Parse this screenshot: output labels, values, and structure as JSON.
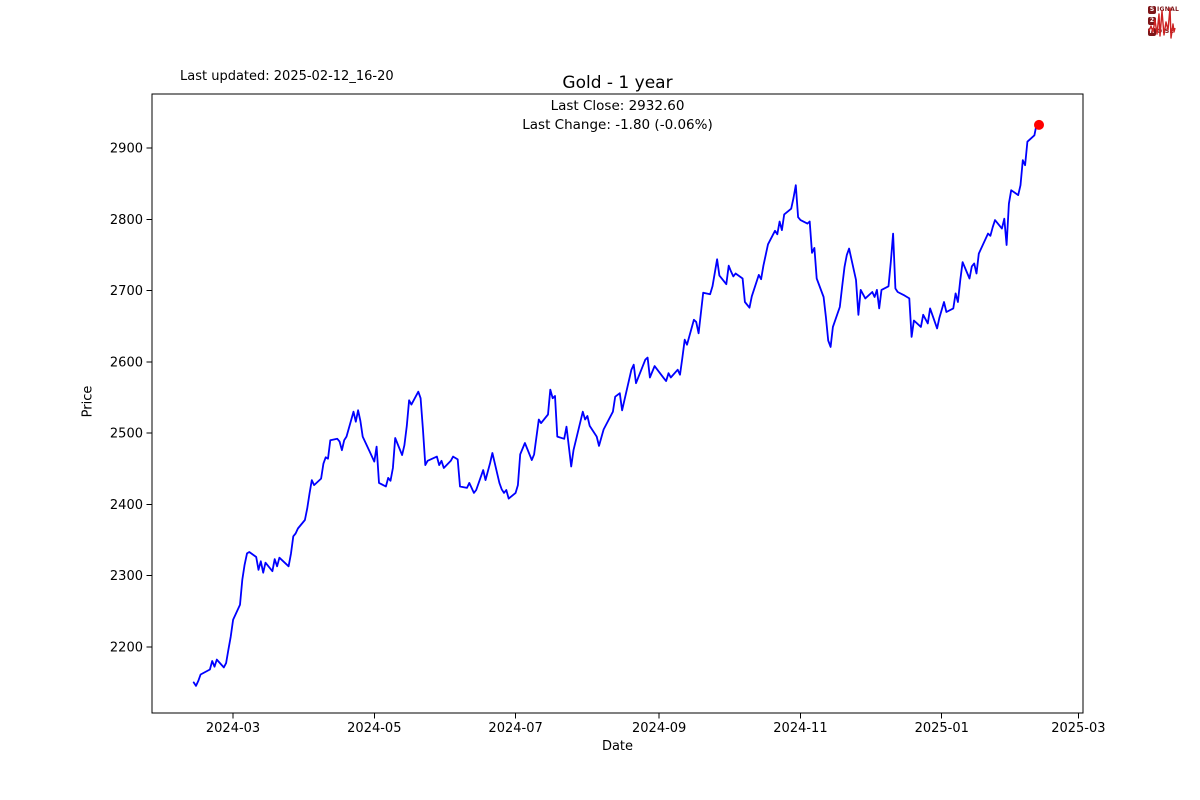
{
  "header": {
    "last_updated": "Last updated: 2025-02-12_16-20"
  },
  "logo": {
    "waveform_color": "#cc2222",
    "box_color": "#7d1518",
    "signal_boxed": "S",
    "signal_rest": "IGNAL",
    "two_boxed": "2",
    "noise_boxed": "N",
    "noise_rest": "OISE"
  },
  "chart_data": {
    "type": "line",
    "title": "Gold - 1 year",
    "subtitle_lines": [
      "Last Close: 2932.60",
      "Last Change: -1.80 (-0.06%)"
    ],
    "last_close": 2932.6,
    "last_change": -1.8,
    "last_change_pct": -0.06,
    "xlabel": "Date",
    "ylabel": "Price",
    "x_ticks": [
      "2024-03",
      "2024-05",
      "2024-07",
      "2024-09",
      "2024-11",
      "2025-01",
      "2025-03"
    ],
    "y_ticks": [
      2200,
      2300,
      2400,
      2500,
      2600,
      2700,
      2800,
      2900
    ],
    "xlim": [
      "2024-01-26",
      "2025-03-03"
    ],
    "ylim": [
      2107,
      2976
    ],
    "grid": false,
    "legend": "none",
    "line_color": "#0000ff",
    "marker_color": "#ff0000",
    "series_name": "Gold",
    "points": [
      [
        "2024-02-13",
        2150
      ],
      [
        "2024-02-14",
        2145
      ],
      [
        "2024-02-15",
        2152
      ],
      [
        "2024-02-16",
        2161
      ],
      [
        "2024-02-20",
        2168
      ],
      [
        "2024-02-21",
        2180
      ],
      [
        "2024-02-22",
        2172
      ],
      [
        "2024-02-23",
        2182
      ],
      [
        "2024-02-26",
        2171
      ],
      [
        "2024-02-27",
        2177
      ],
      [
        "2024-02-28",
        2196
      ],
      [
        "2024-02-29",
        2214
      ],
      [
        "2024-03-01",
        2238
      ],
      [
        "2024-03-04",
        2259
      ],
      [
        "2024-03-05",
        2294
      ],
      [
        "2024-03-06",
        2315
      ],
      [
        "2024-03-07",
        2331
      ],
      [
        "2024-03-08",
        2333
      ],
      [
        "2024-03-11",
        2326
      ],
      [
        "2024-03-12",
        2308
      ],
      [
        "2024-03-13",
        2320
      ],
      [
        "2024-03-14",
        2304
      ],
      [
        "2024-03-15",
        2318
      ],
      [
        "2024-03-18",
        2306
      ],
      [
        "2024-03-19",
        2323
      ],
      [
        "2024-03-20",
        2313
      ],
      [
        "2024-03-21",
        2325
      ],
      [
        "2024-03-25",
        2313
      ],
      [
        "2024-03-26",
        2331
      ],
      [
        "2024-03-27",
        2355
      ],
      [
        "2024-03-28",
        2359
      ],
      [
        "2024-03-29",
        2366
      ],
      [
        "2024-04-01",
        2378
      ],
      [
        "2024-04-02",
        2394
      ],
      [
        "2024-04-03",
        2415
      ],
      [
        "2024-04-04",
        2434
      ],
      [
        "2024-04-05",
        2427
      ],
      [
        "2024-04-08",
        2436
      ],
      [
        "2024-04-09",
        2457
      ],
      [
        "2024-04-10",
        2466
      ],
      [
        "2024-04-11",
        2464
      ],
      [
        "2024-04-12",
        2490
      ],
      [
        "2024-04-15",
        2492
      ],
      [
        "2024-04-16",
        2488
      ],
      [
        "2024-04-17",
        2476
      ],
      [
        "2024-04-18",
        2490
      ],
      [
        "2024-04-19",
        2495
      ],
      [
        "2024-04-22",
        2530
      ],
      [
        "2024-04-23",
        2516
      ],
      [
        "2024-04-24",
        2532
      ],
      [
        "2024-04-25",
        2517
      ],
      [
        "2024-04-26",
        2495
      ],
      [
        "2024-04-29",
        2474
      ],
      [
        "2024-04-30",
        2467
      ],
      [
        "2024-05-01",
        2460
      ],
      [
        "2024-05-02",
        2481
      ],
      [
        "2024-05-03",
        2430
      ],
      [
        "2024-05-06",
        2425
      ],
      [
        "2024-05-07",
        2437
      ],
      [
        "2024-05-08",
        2433
      ],
      [
        "2024-05-09",
        2451
      ],
      [
        "2024-05-10",
        2493
      ],
      [
        "2024-05-13",
        2469
      ],
      [
        "2024-05-14",
        2483
      ],
      [
        "2024-05-15",
        2510
      ],
      [
        "2024-05-16",
        2546
      ],
      [
        "2024-05-17",
        2540
      ],
      [
        "2024-05-20",
        2558
      ],
      [
        "2024-05-21",
        2549
      ],
      [
        "2024-05-22",
        2504
      ],
      [
        "2024-05-23",
        2455
      ],
      [
        "2024-05-24",
        2461
      ],
      [
        "2024-05-28",
        2467
      ],
      [
        "2024-05-29",
        2455
      ],
      [
        "2024-05-30",
        2461
      ],
      [
        "2024-05-31",
        2451
      ],
      [
        "2024-06-03",
        2461
      ],
      [
        "2024-06-04",
        2467
      ],
      [
        "2024-06-06",
        2463
      ],
      [
        "2024-06-07",
        2425
      ],
      [
        "2024-06-10",
        2423
      ],
      [
        "2024-06-11",
        2430
      ],
      [
        "2024-06-13",
        2416
      ],
      [
        "2024-06-14",
        2420
      ],
      [
        "2024-06-17",
        2448
      ],
      [
        "2024-06-18",
        2434
      ],
      [
        "2024-06-20",
        2458
      ],
      [
        "2024-06-21",
        2472
      ],
      [
        "2024-06-24",
        2430
      ],
      [
        "2024-06-25",
        2421
      ],
      [
        "2024-06-26",
        2416
      ],
      [
        "2024-06-27",
        2420
      ],
      [
        "2024-06-28",
        2408
      ],
      [
        "2024-07-01",
        2416
      ],
      [
        "2024-07-02",
        2427
      ],
      [
        "2024-07-03",
        2470
      ],
      [
        "2024-07-05",
        2486
      ],
      [
        "2024-07-08",
        2462
      ],
      [
        "2024-07-09",
        2470
      ],
      [
        "2024-07-11",
        2519
      ],
      [
        "2024-07-12",
        2514
      ],
      [
        "2024-07-15",
        2526
      ],
      [
        "2024-07-16",
        2561
      ],
      [
        "2024-07-17",
        2549
      ],
      [
        "2024-07-18",
        2552
      ],
      [
        "2024-07-19",
        2495
      ],
      [
        "2024-07-22",
        2492
      ],
      [
        "2024-07-23",
        2509
      ],
      [
        "2024-07-25",
        2453
      ],
      [
        "2024-07-26",
        2476
      ],
      [
        "2024-07-30",
        2530
      ],
      [
        "2024-07-31",
        2519
      ],
      [
        "2024-08-01",
        2524
      ],
      [
        "2024-08-02",
        2510
      ],
      [
        "2024-08-05",
        2495
      ],
      [
        "2024-08-06",
        2482
      ],
      [
        "2024-08-08",
        2505
      ],
      [
        "2024-08-12",
        2530
      ],
      [
        "2024-08-13",
        2551
      ],
      [
        "2024-08-15",
        2556
      ],
      [
        "2024-08-16",
        2532
      ],
      [
        "2024-08-20",
        2589
      ],
      [
        "2024-08-21",
        2596
      ],
      [
        "2024-08-22",
        2570
      ],
      [
        "2024-08-26",
        2603
      ],
      [
        "2024-08-27",
        2606
      ],
      [
        "2024-08-28",
        2578
      ],
      [
        "2024-08-30",
        2594
      ],
      [
        "2024-09-03",
        2577
      ],
      [
        "2024-09-04",
        2573
      ],
      [
        "2024-09-05",
        2584
      ],
      [
        "2024-09-06",
        2578
      ],
      [
        "2024-09-09",
        2589
      ],
      [
        "2024-09-10",
        2582
      ],
      [
        "2024-09-11",
        2605
      ],
      [
        "2024-09-12",
        2631
      ],
      [
        "2024-09-13",
        2624
      ],
      [
        "2024-09-16",
        2659
      ],
      [
        "2024-09-17",
        2656
      ],
      [
        "2024-09-18",
        2640
      ],
      [
        "2024-09-20",
        2697
      ],
      [
        "2024-09-23",
        2695
      ],
      [
        "2024-09-24",
        2706
      ],
      [
        "2024-09-26",
        2744
      ],
      [
        "2024-09-27",
        2721
      ],
      [
        "2024-09-30",
        2709
      ],
      [
        "2024-10-01",
        2735
      ],
      [
        "2024-10-02",
        2727
      ],
      [
        "2024-10-03",
        2720
      ],
      [
        "2024-10-04",
        2724
      ],
      [
        "2024-10-07",
        2717
      ],
      [
        "2024-10-08",
        2684
      ],
      [
        "2024-10-10",
        2676
      ],
      [
        "2024-10-11",
        2692
      ],
      [
        "2024-10-14",
        2722
      ],
      [
        "2024-10-15",
        2716
      ],
      [
        "2024-10-16",
        2735
      ],
      [
        "2024-10-17",
        2750
      ],
      [
        "2024-10-18",
        2765
      ],
      [
        "2024-10-21",
        2784
      ],
      [
        "2024-10-22",
        2779
      ],
      [
        "2024-10-23",
        2797
      ],
      [
        "2024-10-24",
        2785
      ],
      [
        "2024-10-25",
        2807
      ],
      [
        "2024-10-28",
        2815
      ],
      [
        "2024-10-29",
        2830
      ],
      [
        "2024-10-30",
        2848
      ],
      [
        "2024-10-31",
        2803
      ],
      [
        "2024-11-01",
        2799
      ],
      [
        "2024-11-04",
        2794
      ],
      [
        "2024-11-05",
        2797
      ],
      [
        "2024-11-06",
        2753
      ],
      [
        "2024-11-07",
        2760
      ],
      [
        "2024-11-08",
        2717
      ],
      [
        "2024-11-11",
        2691
      ],
      [
        "2024-11-12",
        2663
      ],
      [
        "2024-11-13",
        2630
      ],
      [
        "2024-11-14",
        2621
      ],
      [
        "2024-11-15",
        2649
      ],
      [
        "2024-11-18",
        2677
      ],
      [
        "2024-11-19",
        2705
      ],
      [
        "2024-11-20",
        2733
      ],
      [
        "2024-11-21",
        2750
      ],
      [
        "2024-11-22",
        2759
      ],
      [
        "2024-11-25",
        2715
      ],
      [
        "2024-11-26",
        2666
      ],
      [
        "2024-11-27",
        2701
      ],
      [
        "2024-11-29",
        2689
      ],
      [
        "2024-12-02",
        2698
      ],
      [
        "2024-12-03",
        2691
      ],
      [
        "2024-12-04",
        2701
      ],
      [
        "2024-12-05",
        2675
      ],
      [
        "2024-12-06",
        2701
      ],
      [
        "2024-12-09",
        2706
      ],
      [
        "2024-12-10",
        2740
      ],
      [
        "2024-12-11",
        2780
      ],
      [
        "2024-12-12",
        2703
      ],
      [
        "2024-12-13",
        2698
      ],
      [
        "2024-12-16",
        2693
      ],
      [
        "2024-12-17",
        2691
      ],
      [
        "2024-12-18",
        2689
      ],
      [
        "2024-12-19",
        2635
      ],
      [
        "2024-12-20",
        2658
      ],
      [
        "2024-12-23",
        2649
      ],
      [
        "2024-12-24",
        2666
      ],
      [
        "2024-12-26",
        2654
      ],
      [
        "2024-12-27",
        2675
      ],
      [
        "2024-12-30",
        2647
      ],
      [
        "2024-12-31",
        2662
      ],
      [
        "2025-01-02",
        2684
      ],
      [
        "2025-01-03",
        2670
      ],
      [
        "2025-01-06",
        2675
      ],
      [
        "2025-01-07",
        2696
      ],
      [
        "2025-01-08",
        2684
      ],
      [
        "2025-01-09",
        2715
      ],
      [
        "2025-01-10",
        2740
      ],
      [
        "2025-01-13",
        2717
      ],
      [
        "2025-01-14",
        2734
      ],
      [
        "2025-01-15",
        2738
      ],
      [
        "2025-01-16",
        2724
      ],
      [
        "2025-01-17",
        2752
      ],
      [
        "2025-01-21",
        2780
      ],
      [
        "2025-01-22",
        2777
      ],
      [
        "2025-01-23",
        2789
      ],
      [
        "2025-01-24",
        2799
      ],
      [
        "2025-01-27",
        2787
      ],
      [
        "2025-01-28",
        2801
      ],
      [
        "2025-01-29",
        2764
      ],
      [
        "2025-01-30",
        2822
      ],
      [
        "2025-01-31",
        2841
      ],
      [
        "2025-02-03",
        2834
      ],
      [
        "2025-02-04",
        2848
      ],
      [
        "2025-02-05",
        2883
      ],
      [
        "2025-02-06",
        2876
      ],
      [
        "2025-02-07",
        2909
      ],
      [
        "2025-02-10",
        2918
      ],
      [
        "2025-02-11",
        2934.4
      ],
      [
        "2025-02-12",
        2932.6
      ]
    ]
  }
}
